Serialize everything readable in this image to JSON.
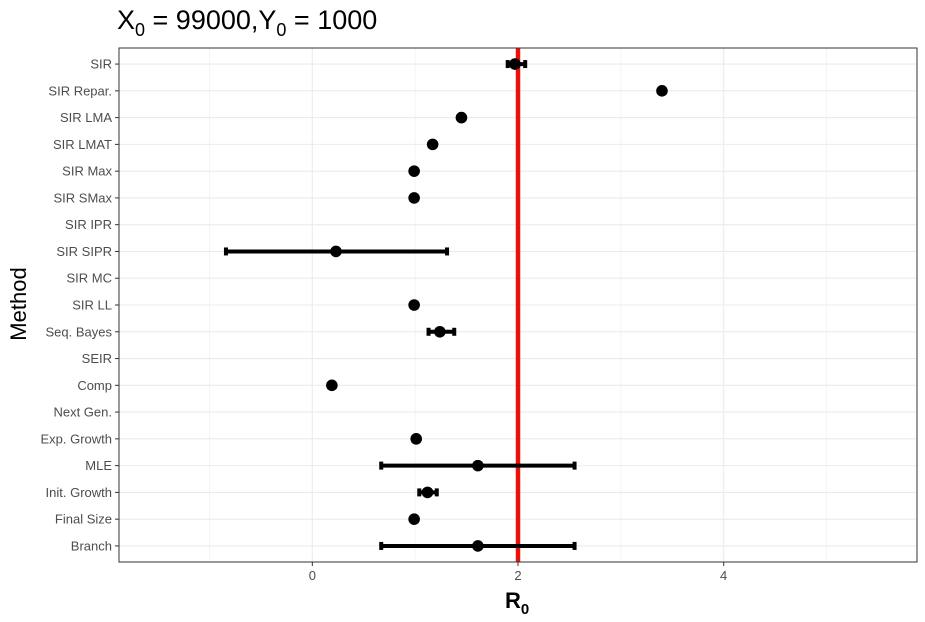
{
  "chart_data": {
    "type": "scatter",
    "title_parts": {
      "x_var": "X",
      "x_sub": "0",
      "x_eq": " = 99000,",
      "y_var": "Y",
      "y_sub": "0",
      "y_eq": " = 1000"
    },
    "xlabel_parts": {
      "main": "R",
      "sub": "0"
    },
    "ylabel": "Method",
    "xlim": [
      -1.88,
      5.88
    ],
    "xticks": [
      0,
      2,
      4
    ],
    "grid": true,
    "reference_line": {
      "x": 2,
      "color": "#e8120c"
    },
    "categories": [
      "SIR",
      "SIR Repar.",
      "SIR LMA",
      "SIR LMAT",
      "SIR Max",
      "SIR SMax",
      "SIR IPR",
      "SIR SIPR",
      "SIR MC",
      "SIR LL",
      "Seq. Bayes",
      "SEIR",
      "Comp",
      "Next Gen.",
      "Exp. Growth",
      "MLE",
      "Init. Growth",
      "Final Size",
      "Branch"
    ],
    "points": [
      {
        "method": "SIR",
        "estimate": 1.97,
        "lower": 1.9,
        "upper": 2.07
      },
      {
        "method": "SIR Repar.",
        "estimate": 3.4,
        "lower": null,
        "upper": null
      },
      {
        "method": "SIR LMA",
        "estimate": 1.45,
        "lower": null,
        "upper": null
      },
      {
        "method": "SIR LMAT",
        "estimate": 1.17,
        "lower": null,
        "upper": null
      },
      {
        "method": "SIR Max",
        "estimate": 0.99,
        "lower": null,
        "upper": null
      },
      {
        "method": "SIR SMax",
        "estimate": 0.99,
        "lower": null,
        "upper": null
      },
      {
        "method": "SIR IPR",
        "estimate": null,
        "lower": null,
        "upper": null
      },
      {
        "method": "SIR SIPR",
        "estimate": 0.23,
        "lower": -0.84,
        "upper": 1.31
      },
      {
        "method": "SIR MC",
        "estimate": null,
        "lower": null,
        "upper": null
      },
      {
        "method": "SIR LL",
        "estimate": 0.99,
        "lower": null,
        "upper": null
      },
      {
        "method": "Seq. Bayes",
        "estimate": 1.24,
        "lower": 1.13,
        "upper": 1.38
      },
      {
        "method": "SEIR",
        "estimate": null,
        "lower": null,
        "upper": null
      },
      {
        "method": "Comp",
        "estimate": 0.19,
        "lower": null,
        "upper": null
      },
      {
        "method": "Next Gen.",
        "estimate": null,
        "lower": null,
        "upper": null
      },
      {
        "method": "Exp. Growth",
        "estimate": 1.01,
        "lower": null,
        "upper": null
      },
      {
        "method": "MLE",
        "estimate": 1.61,
        "lower": 0.67,
        "upper": 2.55
      },
      {
        "method": "Init. Growth",
        "estimate": 1.12,
        "lower": 1.04,
        "upper": 1.21
      },
      {
        "method": "Final Size",
        "estimate": 0.99,
        "lower": null,
        "upper": null
      },
      {
        "method": "Branch",
        "estimate": 1.61,
        "lower": 0.67,
        "upper": 2.55
      }
    ]
  }
}
